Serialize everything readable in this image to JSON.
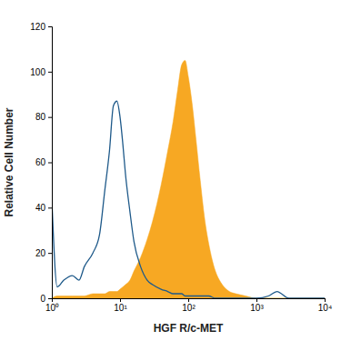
{
  "chart_data": {
    "type": "line",
    "x_label": "HGF R/c-MET",
    "y_label": "Relative Cell Number",
    "log": "x",
    "grid": false,
    "xlim": [
      1,
      10000
    ],
    "xticks": [
      {
        "value": 1,
        "label": "10⁰"
      },
      {
        "value": 10,
        "label": "10¹"
      },
      {
        "value": 100,
        "label": "10²"
      },
      {
        "value": 1000,
        "label": "10³"
      },
      {
        "value": 10000,
        "label": "10⁴"
      }
    ],
    "ylim": [
      0,
      120
    ],
    "yticks": [
      0,
      20,
      40,
      60,
      80,
      100,
      120
    ],
    "x": [
      1,
      1.2,
      1.5,
      2,
      2.5,
      3,
      4,
      5,
      6,
      7,
      8,
      9,
      10,
      11,
      12,
      14,
      16,
      20,
      25,
      30,
      40,
      50,
      60,
      70,
      80,
      90,
      100,
      115,
      130,
      150,
      180,
      200,
      250,
      300,
      400,
      500,
      700,
      1000,
      1500,
      2000,
      3000,
      5000,
      10000
    ],
    "series": [
      {
        "type": "area",
        "color": "#f7a823",
        "values": [
          0,
          1,
          1,
          1,
          1,
          1,
          2,
          2,
          2,
          3,
          3,
          3,
          4,
          5,
          6,
          8,
          12,
          18,
          26,
          34,
          50,
          65,
          78,
          92,
          103,
          105,
          98,
          85,
          70,
          52,
          32,
          24,
          12,
          7,
          3,
          2,
          1,
          0,
          0,
          0,
          0,
          0,
          0
        ]
      },
      {
        "type": "line",
        "color": "#1f5a8a",
        "values": [
          44,
          5,
          8,
          10,
          8,
          14,
          20,
          28,
          48,
          65,
          85,
          87,
          80,
          68,
          55,
          38,
          25,
          14,
          8,
          6,
          4,
          3,
          2,
          2,
          2,
          1,
          1,
          1,
          1,
          1,
          1,
          1,
          0,
          0,
          0,
          0,
          0,
          0,
          1,
          3,
          0,
          0,
          0
        ]
      }
    ]
  }
}
